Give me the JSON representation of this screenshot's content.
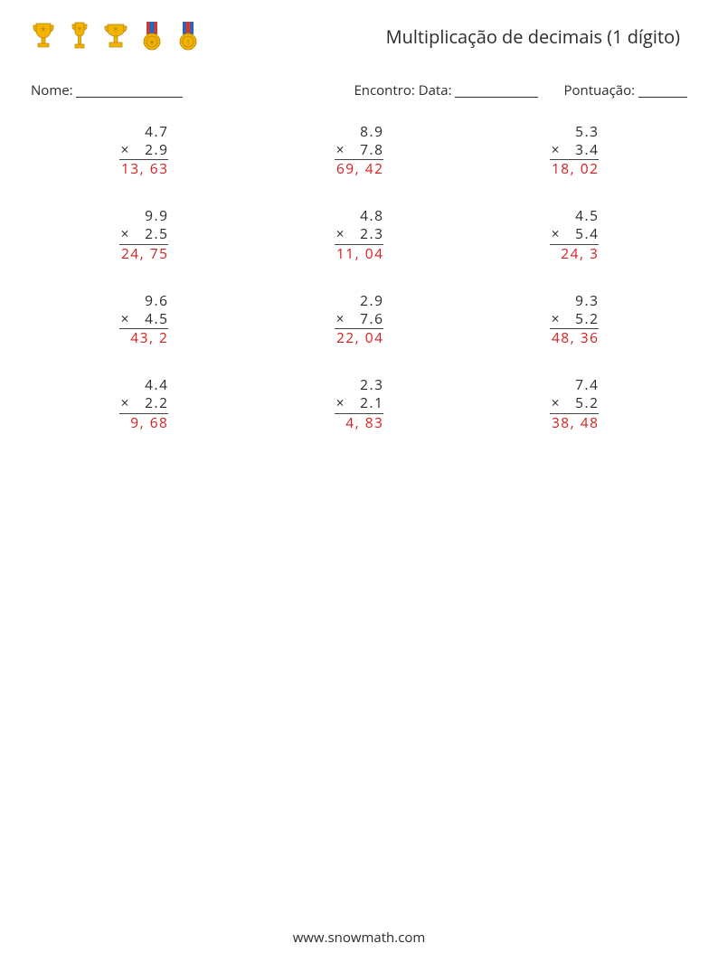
{
  "title": "Multiplicação de decimais (1 dígito)",
  "labels": {
    "name": "Nome:",
    "encounter": "Encontro: Data:",
    "score": "Pontuação:"
  },
  "underline_widths": {
    "name": 118,
    "date": 92,
    "score": 54
  },
  "footer": "www.snowmath.com",
  "colors": {
    "text": "#2b2b2b",
    "answer": "#d21f1f",
    "rule": "#444444",
    "background": "#ffffff",
    "icon_gold": "#f2b200",
    "icon_blue": "#1e68c6",
    "icon_red": "#d13a2f",
    "icon_ribbon_light": "#d9b46a"
  },
  "icons": [
    {
      "name": "trophy-icon",
      "type": "trophy",
      "color": "#f2b200"
    },
    {
      "name": "trophy-icon",
      "type": "trophy_tall",
      "color": "#f2b200"
    },
    {
      "name": "trophy-icon",
      "type": "trophy_wide",
      "color": "#f2b200"
    },
    {
      "name": "medal-icon",
      "type": "medal",
      "ribbon": "#d13a2f",
      "stripe": "#1e68c6",
      "disc": "#f2b200"
    },
    {
      "name": "medal-icon",
      "type": "medal",
      "ribbon": "#1e68c6",
      "stripe": "#d13a2f",
      "disc": "#f2b200"
    }
  ],
  "problems": [
    {
      "a": "4.7",
      "b": "2.9",
      "answer": "13, 63"
    },
    {
      "a": "8.9",
      "b": "7.8",
      "answer": "69, 42"
    },
    {
      "a": "5.3",
      "b": "3.4",
      "answer": "18, 02"
    },
    {
      "a": "9.9",
      "b": "2.5",
      "answer": "24, 75"
    },
    {
      "a": "4.8",
      "b": "2.3",
      "answer": "11, 04"
    },
    {
      "a": "4.5",
      "b": "5.4",
      "answer": "24, 3"
    },
    {
      "a": "9.6",
      "b": "4.5",
      "answer": "43, 2"
    },
    {
      "a": "2.9",
      "b": "7.6",
      "answer": "22, 04"
    },
    {
      "a": "9.3",
      "b": "5.2",
      "answer": "48, 36"
    },
    {
      "a": "4.4",
      "b": "2.2",
      "answer": "9, 68"
    },
    {
      "a": "2.3",
      "b": "2.1",
      "answer": "4, 83"
    },
    {
      "a": "7.4",
      "b": "5.2",
      "answer": "38, 48"
    }
  ]
}
